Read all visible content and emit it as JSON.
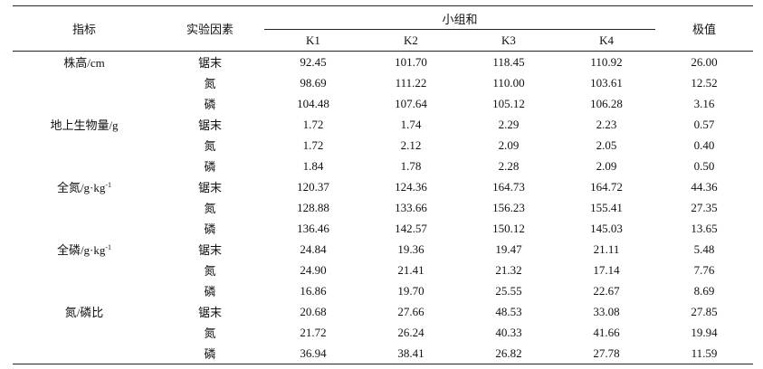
{
  "header": {
    "indicator": "指标",
    "factor": "实验因素",
    "group_sum": "小组和",
    "range": "极值",
    "k_labels": [
      "K1",
      "K2",
      "K3",
      "K4"
    ]
  },
  "rows": [
    {
      "indicator": "株高/cm",
      "indicator_sup": "",
      "factor": "锯末",
      "k1": "92.45",
      "k2": "101.70",
      "k3": "118.45",
      "k4": "110.92",
      "range": "26.00"
    },
    {
      "indicator": "",
      "indicator_sup": "",
      "factor": "氮",
      "k1": "98.69",
      "k2": "111.22",
      "k3": "110.00",
      "k4": "103.61",
      "range": "12.52"
    },
    {
      "indicator": "",
      "indicator_sup": "",
      "factor": "磷",
      "k1": "104.48",
      "k2": "107.64",
      "k3": "105.12",
      "k4": "106.28",
      "range": "3.16"
    },
    {
      "indicator": "地上生物量/g",
      "indicator_sup": "",
      "factor": "锯末",
      "k1": "1.72",
      "k2": "1.74",
      "k3": "2.29",
      "k4": "2.23",
      "range": "0.57"
    },
    {
      "indicator": "",
      "indicator_sup": "",
      "factor": "氮",
      "k1": "1.72",
      "k2": "2.12",
      "k3": "2.09",
      "k4": "2.05",
      "range": "0.40"
    },
    {
      "indicator": "",
      "indicator_sup": "",
      "factor": "磷",
      "k1": "1.84",
      "k2": "1.78",
      "k3": "2.28",
      "k4": "2.09",
      "range": "0.50"
    },
    {
      "indicator": "全氮/g·kg",
      "indicator_sup": "-1",
      "factor": "锯末",
      "k1": "120.37",
      "k2": "124.36",
      "k3": "164.73",
      "k4": "164.72",
      "range": "44.36"
    },
    {
      "indicator": "",
      "indicator_sup": "",
      "factor": "氮",
      "k1": "128.88",
      "k2": "133.66",
      "k3": "156.23",
      "k4": "155.41",
      "range": "27.35"
    },
    {
      "indicator": "",
      "indicator_sup": "",
      "factor": "磷",
      "k1": "136.46",
      "k2": "142.57",
      "k3": "150.12",
      "k4": "145.03",
      "range": "13.65"
    },
    {
      "indicator": "全磷/g·kg",
      "indicator_sup": "-1",
      "factor": "锯末",
      "k1": "24.84",
      "k2": "19.36",
      "k3": "19.47",
      "k4": "21.11",
      "range": "5.48"
    },
    {
      "indicator": "",
      "indicator_sup": "",
      "factor": "氮",
      "k1": "24.90",
      "k2": "21.41",
      "k3": "21.32",
      "k4": "17.14",
      "range": "7.76"
    },
    {
      "indicator": "",
      "indicator_sup": "",
      "factor": "磷",
      "k1": "16.86",
      "k2": "19.70",
      "k3": "25.55",
      "k4": "22.67",
      "range": "8.69"
    },
    {
      "indicator": "氮/磷比",
      "indicator_sup": "",
      "factor": "锯末",
      "k1": "20.68",
      "k2": "27.66",
      "k3": "48.53",
      "k4": "33.08",
      "range": "27.85"
    },
    {
      "indicator": "",
      "indicator_sup": "",
      "factor": "氮",
      "k1": "21.72",
      "k2": "26.24",
      "k3": "40.33",
      "k4": "41.66",
      "range": "19.94"
    },
    {
      "indicator": "",
      "indicator_sup": "",
      "factor": "磷",
      "k1": "36.94",
      "k2": "38.41",
      "k3": "26.82",
      "k4": "27.78",
      "range": "11.59"
    }
  ]
}
